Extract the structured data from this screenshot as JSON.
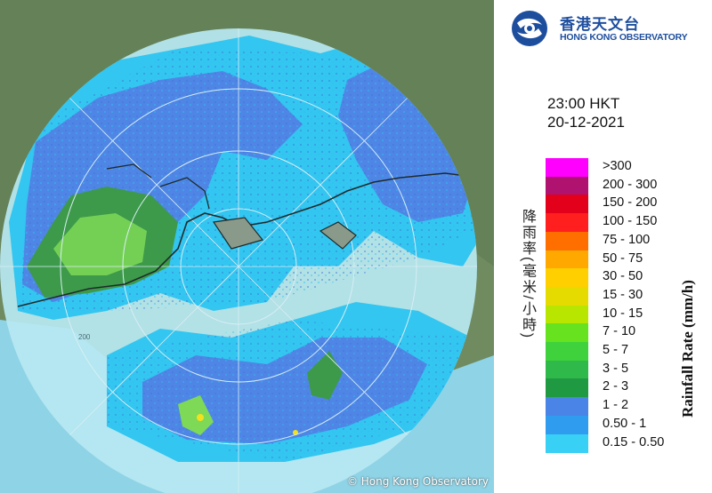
{
  "map": {
    "copyright": "© Hong Kong Observatory",
    "ring_label": "200",
    "colors": {
      "land": "#6f8b5f",
      "sea": "#8fd3e6",
      "coverage": "#b7e8f2",
      "rain_light": "#32c6f0",
      "rain_mid": "#4f86e6",
      "rain_heavy": "#3d9a4a",
      "rain_medium": "#7ed957",
      "rain_yellow": "#f2e11c",
      "coast": "#1f2a2a"
    }
  },
  "header": {
    "logo_zh": "香港天文台",
    "logo_en": "HONG KONG OBSERVATORY"
  },
  "time": {
    "time": "23:00 HKT",
    "date": "20-12-2021"
  },
  "legend": {
    "unit_zh": "降雨率(毫米/小時)",
    "unit_en": "Rainfall Rate (mm/h)",
    "items": [
      {
        "label": ">300",
        "color": "#ff00ff"
      },
      {
        "label": "200 - 300",
        "color": "#b0126f"
      },
      {
        "label": "150 - 200",
        "color": "#e2001a"
      },
      {
        "label": "100 - 150",
        "color": "#ff1f1f"
      },
      {
        "label": "75 - 100",
        "color": "#ff6f00"
      },
      {
        "label": "50 - 75",
        "color": "#ffa800"
      },
      {
        "label": "30 - 50",
        "color": "#ffcf00"
      },
      {
        "label": "15 - 30",
        "color": "#e5db00"
      },
      {
        "label": "10 - 15",
        "color": "#b8e600"
      },
      {
        "label": "7 - 10",
        "color": "#66e21f"
      },
      {
        "label": "5 - 7",
        "color": "#3fd23c"
      },
      {
        "label": "3 - 5",
        "color": "#2fb94a"
      },
      {
        "label": "2 - 3",
        "color": "#1f9a43"
      },
      {
        "label": "1 - 2",
        "color": "#4a84e6"
      },
      {
        "label": "0.50 - 1",
        "color": "#2f9cf0"
      },
      {
        "label": "0.15 - 0.50",
        "color": "#39d0f5"
      }
    ]
  }
}
